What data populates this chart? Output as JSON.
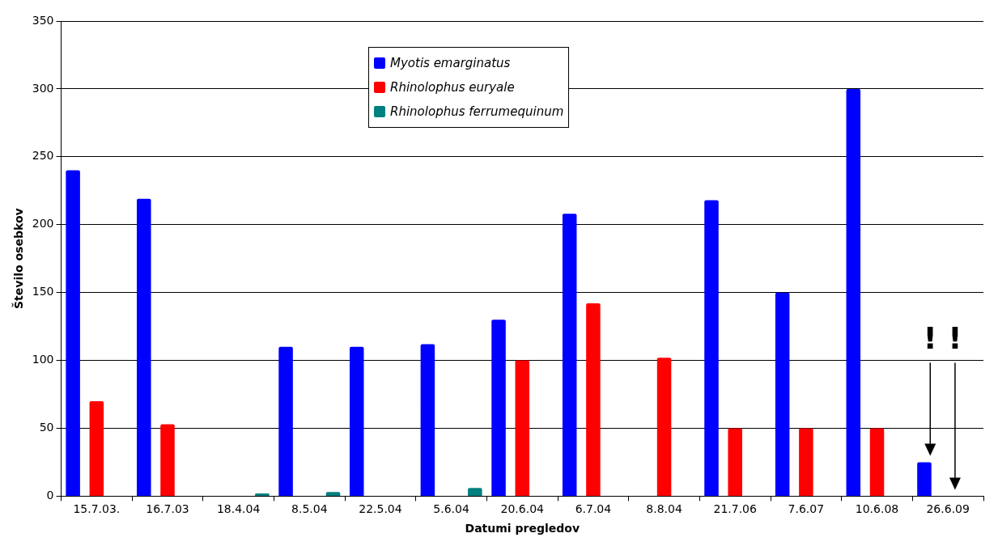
{
  "chart_data": {
    "type": "bar",
    "xlabel": "Datumi pregledov",
    "ylabel": "Število osebkov",
    "categories": [
      "15.7.03.",
      "16.7.03",
      "18.4.04",
      "8.5.04",
      "22.5.04",
      "5.6.04",
      "20.6.04",
      "6.7.04",
      "8.8.04",
      "21.7.06",
      "7.6.07",
      "10.6.08",
      "26.6.09"
    ],
    "series": [
      {
        "name": "Myotis emarginatus",
        "color": "#0000ff",
        "values": [
          240,
          219,
          null,
          110,
          110,
          112,
          130,
          208,
          null,
          218,
          150,
          300,
          25
        ]
      },
      {
        "name": "Rhinolophus euryale",
        "color": "#ff0000",
        "values": [
          70,
          53,
          null,
          null,
          null,
          null,
          100,
          142,
          102,
          50,
          50,
          50,
          null
        ]
      },
      {
        "name": "Rhinolophus ferrumequinum",
        "color": "#008080",
        "values": [
          null,
          null,
          2,
          3,
          null,
          6,
          null,
          null,
          null,
          null,
          null,
          null,
          null
        ]
      }
    ],
    "ylim": [
      0,
      350
    ],
    "yticks": [
      0,
      50,
      100,
      150,
      200,
      250,
      300,
      350
    ],
    "grid": "y",
    "legend": "top",
    "annotations": [
      "!",
      "!"
    ]
  }
}
